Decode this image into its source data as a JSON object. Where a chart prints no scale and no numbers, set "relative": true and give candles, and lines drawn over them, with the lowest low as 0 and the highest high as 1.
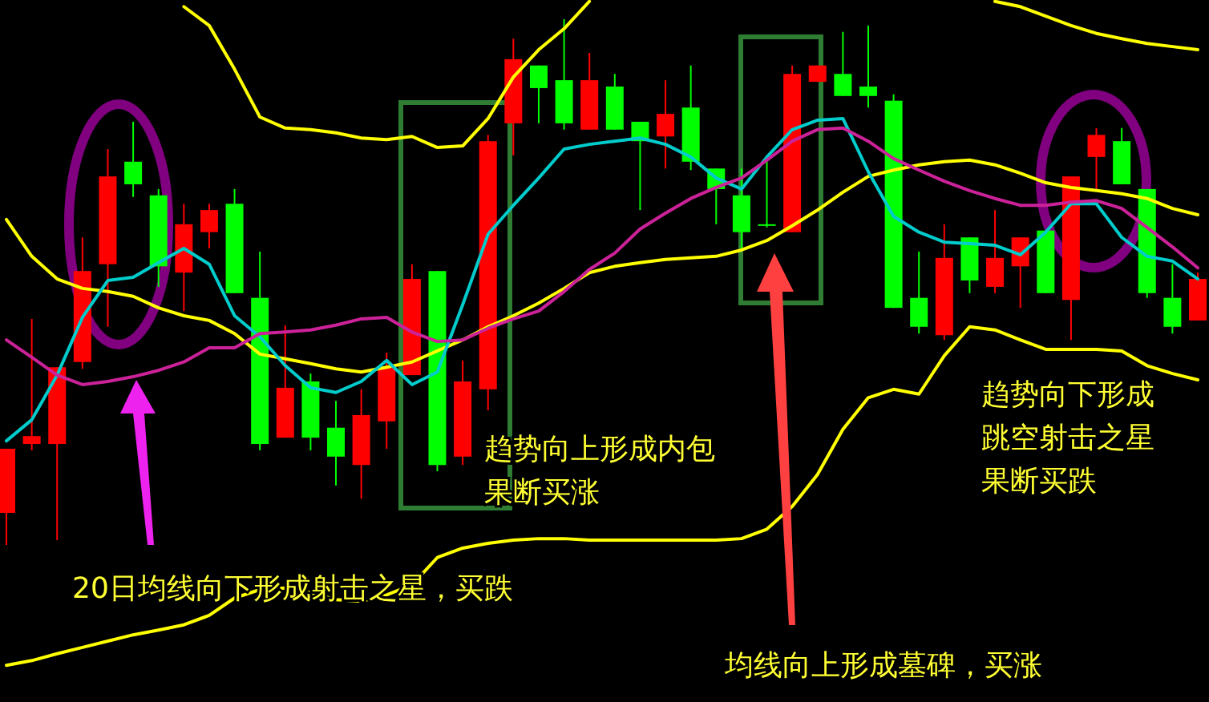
{
  "chart_data": {
    "type": "candlestick",
    "relative": true,
    "categories": [
      null,
      null,
      null,
      null,
      null,
      null,
      null,
      null,
      null,
      null,
      null,
      null,
      null,
      null,
      null,
      null,
      null,
      null,
      null,
      null,
      null,
      null,
      null,
      null,
      null,
      null,
      null,
      null,
      null,
      null,
      null,
      null,
      null,
      null,
      null,
      null,
      null,
      null,
      null,
      null,
      null,
      null,
      null,
      null,
      null,
      null,
      null,
      null
    ],
    "ohlc": [
      [
        0.061,
        0.183,
        0,
        0.183
      ],
      [
        0.192,
        0.43,
        0.18,
        0.207
      ],
      [
        0.192,
        0.338,
        0.009,
        0.338
      ],
      [
        0.348,
        0.585,
        0.335,
        0.521
      ],
      [
        0.534,
        0.753,
        0.415,
        0.701
      ],
      [
        0.729,
        0.805,
        0.662,
        0.686
      ],
      [
        0.665,
        0.677,
        0.491,
        0.53
      ],
      [
        0.518,
        0.649,
        0.445,
        0.61
      ],
      [
        0.595,
        0.649,
        0.564,
        0.637
      ],
      [
        0.649,
        0.677,
        0.479,
        0.479
      ],
      [
        0.47,
        0.558,
        0.18,
        0.192
      ],
      [
        0.204,
        0.418,
        0.204,
        0.299
      ],
      [
        0.311,
        0.326,
        0.18,
        0.204
      ],
      [
        0.223,
        0.274,
        0.113,
        0.168
      ],
      [
        0.152,
        0.296,
        0.088,
        0.247
      ],
      [
        0.235,
        0.366,
        0.183,
        0.338
      ],
      [
        0.323,
        0.534,
        0.323,
        0.506
      ],
      [
        0.521,
        0.521,
        0.14,
        0.152
      ],
      [
        0.168,
        0.351,
        0.152,
        0.311
      ],
      [
        0.296,
        0.78,
        0.256,
        0.768
      ],
      [
        0.802,
        0.963,
        0.741,
        0.924
      ],
      [
        0.912,
        0.912,
        0.802,
        0.869
      ],
      [
        0.884,
        1,
        0.79,
        0.802
      ],
      [
        0.79,
        0.936,
        0.79,
        0.884
      ],
      [
        0.872,
        0.896,
        0.79,
        0.79
      ],
      [
        0.805,
        0.805,
        0.637,
        0.768
      ],
      [
        0.777,
        0.884,
        0.716,
        0.82
      ],
      [
        0.832,
        0.912,
        0.713,
        0.729
      ],
      [
        0.716,
        0.716,
        0.61,
        0.677
      ],
      [
        0.665,
        0.716,
        0.564,
        0.595
      ],
      [
        0.61,
        0.732,
        0.604,
        0.607
      ],
      [
        0.595,
        0.912,
        0.595,
        0.896
      ],
      [
        0.881,
        0.912,
        0.881,
        0.912
      ],
      [
        0.896,
        0.976,
        0.854,
        0.854
      ],
      [
        0.872,
        0.988,
        0.832,
        0.854
      ],
      [
        0.845,
        0.857,
        0.451,
        0.451
      ],
      [
        0.47,
        0.558,
        0.402,
        0.415
      ],
      [
        0.399,
        0.61,
        0.39,
        0.546
      ],
      [
        0.585,
        0.585,
        0.479,
        0.503
      ],
      [
        0.491,
        0.637,
        0.479,
        0.546
      ],
      [
        0.53,
        0.585,
        0.451,
        0.585
      ],
      [
        0.598,
        0.598,
        0.479,
        0.479
      ],
      [
        0.466,
        0.701,
        0.39,
        0.701
      ],
      [
        0.738,
        0.793,
        0.677,
        0.78
      ],
      [
        0.768,
        0.793,
        0.686,
        0.686
      ],
      [
        0.677,
        0.677,
        0.47,
        0.479
      ],
      [
        0.47,
        0.534,
        0.402,
        0.415
      ],
      [
        0.427,
        0.518,
        0.427,
        0.506
      ]
    ],
    "colors": [
      "#ff0000",
      "#ff0000",
      "#ff0000",
      "#ff0000",
      "#ff0000",
      "#00ff00",
      "#00ff00",
      "#ff0000",
      "#ff0000",
      "#00ff00",
      "#00ff00",
      "#ff0000",
      "#00ff00",
      "#00ff00",
      "#ff0000",
      "#ff0000",
      "#ff0000",
      "#00ff00",
      "#ff0000",
      "#ff0000",
      "#ff0000",
      "#00ff00",
      "#00ff00",
      "#ff0000",
      "#00ff00",
      "#00ff00",
      "#ff0000",
      "#00ff00",
      "#00ff00",
      "#00ff00",
      "#00ff00",
      "#ff0000",
      "#ff0000",
      "#00ff00",
      "#00ff00",
      "#00ff00",
      "#00ff00",
      "#ff0000",
      "#00ff00",
      "#ff0000",
      "#ff0000",
      "#00ff00",
      "#ff0000",
      "#ff0000",
      "#00ff00",
      "#00ff00",
      "#00ff00",
      "#ff0000"
    ],
    "series": [
      {
        "type": "line",
        "color": "#ffff00",
        "values": [
          null,
          null,
          null,
          null,
          null,
          null,
          null,
          1.024,
          0.988,
          0.905,
          0.814,
          0.793,
          0.79,
          0.784,
          0.774,
          0.771,
          0.777,
          0.756,
          0.759,
          0.811,
          0.89,
          0.942,
          0.982,
          1.034,
          null,
          null,
          null,
          null,
          null,
          null,
          null,
          null,
          null,
          null,
          null,
          null,
          null,
          null,
          null,
          1.034,
          1.024,
          1.006,
          0.988,
          0.973,
          0.963,
          0.954,
          0.948,
          0.942
        ]
      },
      {
        "type": "line",
        "color": "#ffff00",
        "values": [
          0.619,
          0.549,
          0.506,
          0.488,
          0.482,
          0.473,
          0.451,
          0.436,
          0.427,
          0.402,
          0.363,
          0.354,
          0.345,
          0.335,
          0.329,
          0.338,
          0.348,
          0.369,
          0.39,
          0.415,
          0.436,
          0.46,
          0.488,
          0.518,
          0.53,
          0.537,
          0.543,
          0.546,
          0.549,
          0.561,
          0.579,
          0.607,
          0.637,
          0.671,
          0.701,
          0.713,
          0.723,
          0.729,
          0.732,
          0.723,
          0.707,
          0.689,
          0.68,
          0.674,
          0.668,
          0.659,
          0.64,
          0.628
        ]
      },
      {
        "type": "line",
        "color": "#ffff00",
        "values": [
          -0.229,
          -0.22,
          -0.207,
          -0.195,
          -0.183,
          -0.171,
          -0.162,
          -0.152,
          -0.134,
          -0.101,
          -0.085,
          -0.082,
          -0.091,
          -0.104,
          -0.107,
          -0.095,
          -0.076,
          -0.024,
          -0.006,
          0.003,
          0.009,
          0.012,
          0.012,
          0.009,
          0.009,
          0.009,
          0.009,
          0.009,
          0.009,
          0.012,
          0.03,
          0.073,
          0.134,
          0.22,
          0.28,
          0.296,
          0.287,
          0.36,
          0.415,
          0.409,
          0.39,
          0.372,
          0.372,
          0.372,
          0.369,
          0.341,
          0.326,
          0.314
        ]
      },
      {
        "type": "line",
        "color": "#00cccc",
        "values": [
          0.198,
          0.238,
          0.323,
          0.433,
          0.503,
          0.509,
          0.537,
          0.564,
          0.534,
          0.436,
          0.396,
          0.341,
          0.299,
          0.29,
          0.311,
          0.351,
          0.305,
          0.329,
          0.457,
          0.591,
          0.646,
          0.698,
          0.753,
          0.762,
          0.768,
          0.774,
          0.762,
          0.738,
          0.698,
          0.677,
          0.738,
          0.79,
          0.808,
          0.811,
          0.71,
          0.625,
          0.595,
          0.576,
          0.573,
          0.57,
          0.552,
          0.595,
          0.649,
          0.649,
          0.585,
          0.549,
          0.54,
          0.506
        ]
      },
      {
        "type": "line",
        "color": "#cc2299",
        "values": [
          0.39,
          0.357,
          0.323,
          0.305,
          0.311,
          0.32,
          0.332,
          0.348,
          0.375,
          0.375,
          0.402,
          0.405,
          0.409,
          0.418,
          0.43,
          0.433,
          0.405,
          0.387,
          0.39,
          0.412,
          0.43,
          0.445,
          0.482,
          0.524,
          0.555,
          0.601,
          0.631,
          0.659,
          0.68,
          0.698,
          0.732,
          0.768,
          0.79,
          0.793,
          0.768,
          0.735,
          0.713,
          0.692,
          0.674,
          0.659,
          0.646,
          0.646,
          0.652,
          0.655,
          0.64,
          0.604,
          0.567,
          0.527
        ]
      }
    ],
    "annotations": [
      "20日均线向下形成射击之星，买跌",
      "趋势向上形成内包果断买涨",
      "趋势向下形成跳空射击之星果断买跌",
      "均线向上形成墓碑，买涨"
    ]
  }
}
